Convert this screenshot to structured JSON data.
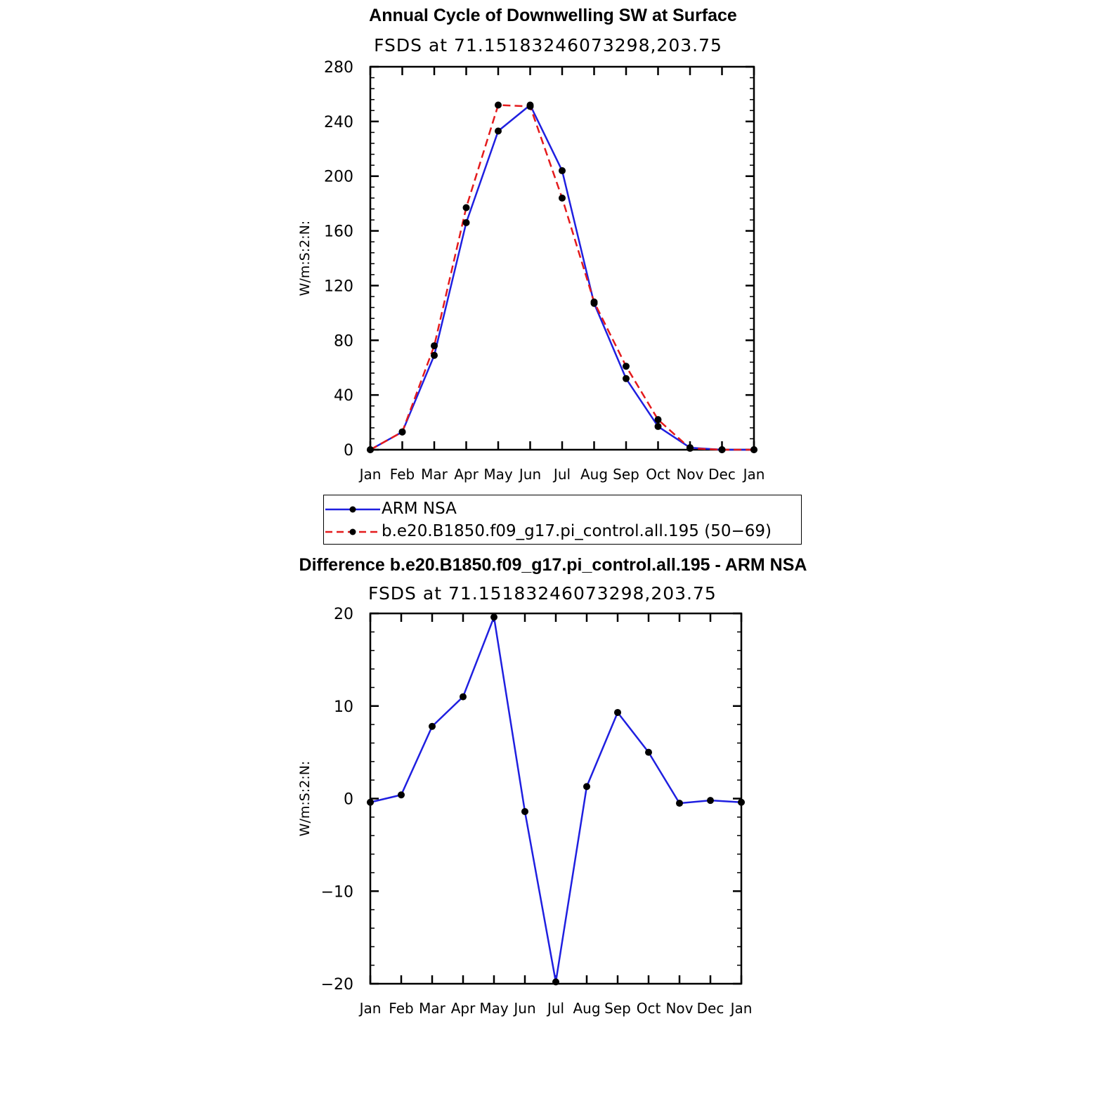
{
  "colors": {
    "obs": "#1f1fe0",
    "model": "#e41a1c",
    "marker": "#000000",
    "axis": "#000000"
  },
  "chart_data": [
    {
      "type": "line",
      "title": "Annual Cycle of Downwelling SW at Surface",
      "subtitle": "FSDS at 71.15183246073298,203.75",
      "xlabel": "",
      "ylabel": "W/m:S:2:N:",
      "categories": [
        "Jan",
        "Feb",
        "Mar",
        "Apr",
        "May",
        "Jun",
        "Jul",
        "Aug",
        "Sep",
        "Oct",
        "Nov",
        "Dec",
        "Jan"
      ],
      "ylim": [
        0,
        280
      ],
      "yticks": [
        0,
        40,
        80,
        120,
        160,
        200,
        240,
        280
      ],
      "series": [
        {
          "name": "ARM NSA",
          "style": "solid",
          "color_key": "obs",
          "values": [
            0,
            13,
            69,
            166,
            233,
            252,
            204,
            107,
            52,
            17,
            1.5,
            0,
            0
          ]
        },
        {
          "name": "b.e20.B1850.f09_g17.pi_control.all.195 (50−69)",
          "style": "dashed",
          "color_key": "model",
          "values": [
            0,
            13,
            76,
            177,
            252,
            251,
            184,
            108,
            61,
            22,
            1,
            0,
            0
          ]
        }
      ],
      "legend": "below"
    },
    {
      "type": "line",
      "title": "Difference b.e20.B1850.f09_g17.pi_control.all.195 - ARM NSA",
      "subtitle": "FSDS at 71.15183246073298,203.75",
      "xlabel": "",
      "ylabel": "W/m:S:2:N:",
      "categories": [
        "Jan",
        "Feb",
        "Mar",
        "Apr",
        "May",
        "Jun",
        "Jul",
        "Aug",
        "Sep",
        "Oct",
        "Nov",
        "Dec",
        "Jan"
      ],
      "ylim": [
        -20,
        20
      ],
      "yticks": [
        -20,
        -10,
        0,
        10,
        20
      ],
      "ytick_labels": [
        "−20",
        "−10",
        "0",
        "10",
        "20"
      ],
      "series": [
        {
          "style": "solid",
          "color_key": "obs",
          "values": [
            -0.4,
            0.4,
            7.8,
            11,
            19.6,
            -1.4,
            -19.8,
            1.3,
            9.3,
            5,
            -0.5,
            -0.2,
            -0.4
          ]
        }
      ]
    }
  ]
}
